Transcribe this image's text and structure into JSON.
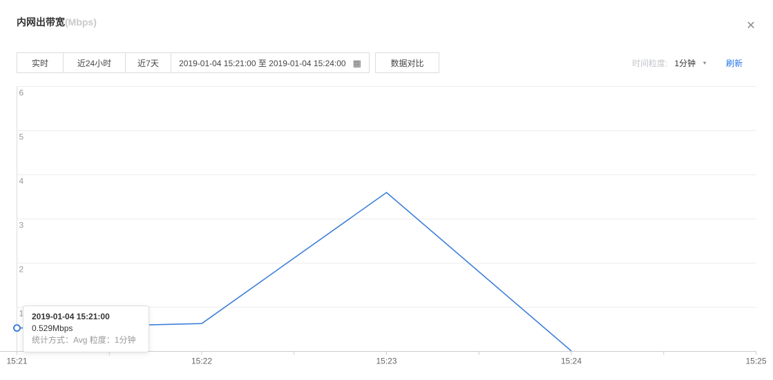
{
  "header": {
    "title": "内网出带宽",
    "unit": "(Mbps)"
  },
  "icons": {
    "close": "✕",
    "calendar": "▦",
    "caret_down": "▼"
  },
  "toolbar": {
    "time_buttons": [
      "实时",
      "近24小时",
      "近7天"
    ],
    "date_range": "2019-01-04 15:21:00 至 2019-01-04 15:24:00",
    "compare_button": "数据对比",
    "granularity_label": "时间粒度:",
    "granularity_value": "1分钟",
    "refresh_label": "刷新"
  },
  "tooltip": {
    "time": "2019-01-04 15:21:00",
    "value": "0.529Mbps",
    "meta": "统计方式：Avg 粒度：1分钟"
  },
  "chart_data": {
    "type": "line",
    "title": "内网出带宽(Mbps)",
    "x": [
      "15:21",
      "15:22",
      "15:23",
      "15:24"
    ],
    "values": [
      0.529,
      0.63,
      3.6,
      0.01
    ],
    "x_axis_ticks": [
      "15:21",
      "15:22",
      "15:23",
      "15:24",
      "15:25"
    ],
    "minor_ticks_per_interval": 2,
    "y_ticks": [
      1,
      2,
      3,
      4,
      5,
      6
    ],
    "ylim": [
      0,
      6
    ],
    "xlabel": "",
    "ylabel": "Mbps",
    "grid": true,
    "legend": "none",
    "line_color": "#3d7fd9",
    "hover_point": {
      "x": "15:21",
      "value": 0.529
    }
  },
  "colors": {
    "accent_blue": "#3d7fd9",
    "refresh_link": "#2577e6",
    "grid_line": "#ececec",
    "axis_line": "#cccccc",
    "y_axis_line": "#dddddd",
    "x_tick_label": "#666666",
    "y_tick_label": "#999999"
  }
}
